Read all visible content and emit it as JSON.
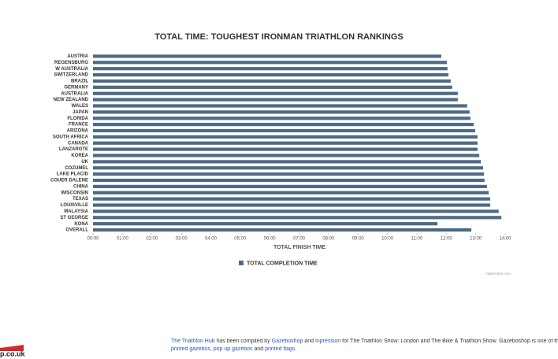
{
  "chart_data": {
    "type": "hbar",
    "title": "TOTAL TIME: TOUGHEST IRONMAN TRIATHLON RANKINGS",
    "x_label": "TOTAL FINISH TIME",
    "categories": [
      "AUSTRIA",
      "REGENSBURG",
      "W AUSTRALIA",
      "SWITZERLAND",
      "BRAZIL",
      "GERMANY",
      "AUSTRALIA",
      "NEW ZEALAND",
      "WALES",
      "JAPAN",
      "FLORIDA",
      "FRANCE",
      "ARIZONA",
      "SOUTH AFRICA",
      "CANADA",
      "LANZAROTE",
      "KOREA",
      "UK",
      "COZUMEL",
      "LAKE PLACID",
      "COUER DALENE",
      "CHINA",
      "WISCONSIN",
      "TEXAS",
      "LOUISVILLE",
      "MALAYSIA",
      "ST GEORGE",
      "KONA",
      "OVERALL"
    ],
    "series": [
      {
        "name": "TOTAL COMPLETION TIME",
        "color": "#4f6a84",
        "values": [
          11.83,
          12.02,
          12.04,
          12.07,
          12.15,
          12.2,
          12.39,
          12.39,
          12.71,
          12.79,
          12.82,
          12.93,
          12.98,
          13.06,
          13.06,
          13.06,
          13.12,
          13.17,
          13.25,
          13.28,
          13.3,
          13.38,
          13.44,
          13.49,
          13.49,
          13.78,
          13.87,
          11.7,
          12.85
        ]
      }
    ],
    "xlim": [
      0,
      14
    ],
    "xticks": [
      {
        "value": 0,
        "label": "00:00"
      },
      {
        "value": 1,
        "label": "01:00"
      },
      {
        "value": 2,
        "label": "02:00"
      },
      {
        "value": 3,
        "label": "03:00"
      },
      {
        "value": 4,
        "label": "04:00"
      },
      {
        "value": 5,
        "label": "05:00"
      },
      {
        "value": 6,
        "label": "06:00"
      },
      {
        "value": 7,
        "label": "07:00"
      },
      {
        "value": 8,
        "label": "08:00"
      },
      {
        "value": 9,
        "label": "09:00"
      },
      {
        "value": 10,
        "label": "10:00"
      },
      {
        "value": 11,
        "label": "11:00"
      },
      {
        "value": 12,
        "label": "12:00"
      },
      {
        "value": 13,
        "label": "13:00"
      },
      {
        "value": 14,
        "label": "14:00"
      }
    ],
    "grid": false,
    "legend": "bottom",
    "credit": "Highcharts.com"
  },
  "footer": {
    "parts": [
      {
        "text": "The Triathlon Hub",
        "link": true
      },
      {
        "text": " has been compiled by ",
        "link": false
      },
      {
        "text": "Gazeboshop",
        "link": true
      },
      {
        "text": " and ",
        "link": false
      },
      {
        "text": "Inpression",
        "link": true
      },
      {
        "text": " for The Triathlon Show: London and The Bike & Triathlon Show. Gazeboshop is one of the UK's leading s",
        "link": false
      }
    ],
    "parts2": [
      {
        "text": "printed gazebos",
        "link": true
      },
      {
        "text": ", ",
        "link": false
      },
      {
        "text": "pop up gazebos",
        "link": true
      },
      {
        "text": " and ",
        "link": false
      },
      {
        "text": "printed flags",
        "link": true
      },
      {
        "text": ".",
        "link": false
      }
    ]
  },
  "logo": "p.co.uk"
}
